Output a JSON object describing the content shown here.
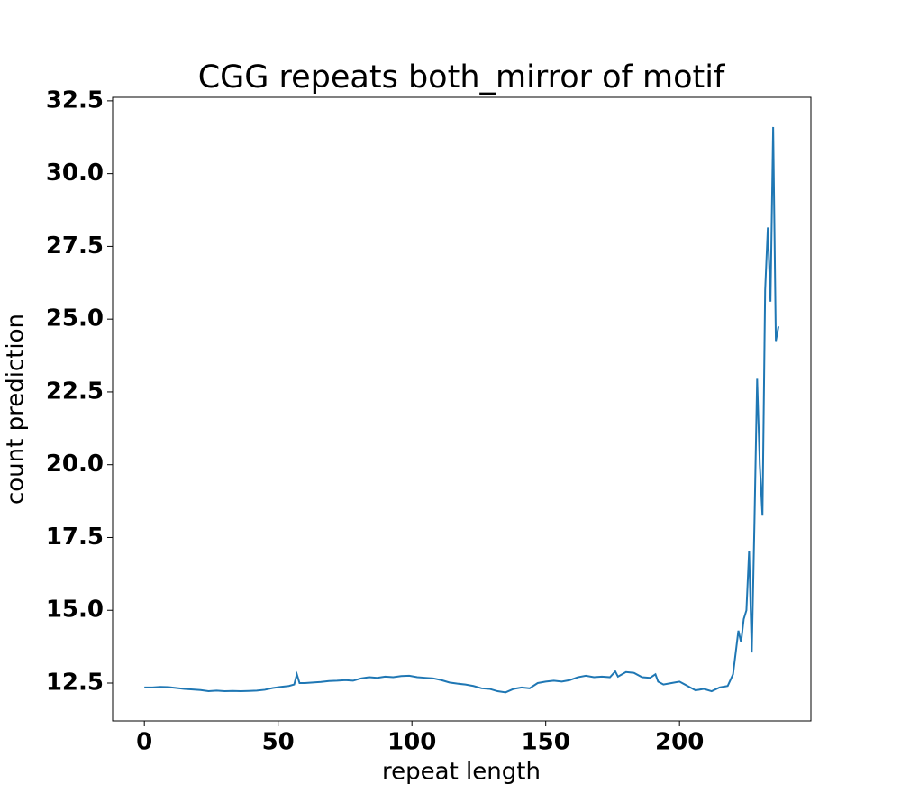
{
  "chart_data": {
    "type": "line",
    "title": "CGG repeats both_mirror of motif",
    "x_label": "repeat length",
    "y_label": "count prediction",
    "xlim": [
      -11.85,
      249.1
    ],
    "ylim": [
      11.2,
      32.62
    ],
    "xticks": [
      0,
      50,
      100,
      150,
      200
    ],
    "yticks": [
      {
        "value": 12.5,
        "label": "12.5"
      },
      {
        "value": 15,
        "label": "15.0"
      },
      {
        "value": 17.5,
        "label": "17.5"
      },
      {
        "value": 20,
        "label": "20.0"
      },
      {
        "value": 22.5,
        "label": "22.5"
      },
      {
        "value": 25,
        "label": "25.0"
      },
      {
        "value": 27.5,
        "label": "27.5"
      },
      {
        "value": 30,
        "label": "30.0"
      },
      {
        "value": 32.5,
        "label": "32.5"
      }
    ],
    "grid": false,
    "x": [
      0,
      3,
      6,
      9,
      12,
      15,
      18,
      21,
      24,
      27,
      30,
      33,
      36,
      39,
      42,
      45,
      48,
      51,
      54,
      56,
      57,
      58,
      60,
      63,
      66,
      69,
      72,
      75,
      78,
      81,
      84,
      87,
      90,
      93,
      96,
      99,
      102,
      105,
      108,
      111,
      114,
      117,
      120,
      123,
      126,
      129,
      132,
      135,
      138,
      141,
      144,
      147,
      150,
      153,
      156,
      159,
      162,
      165,
      168,
      171,
      174,
      176,
      177,
      180,
      183,
      186,
      189,
      191,
      192,
      194,
      197,
      200,
      203,
      206,
      209,
      212,
      215,
      218,
      220,
      222,
      223,
      224,
      225,
      226,
      227,
      228,
      229,
      230,
      231,
      232,
      233,
      234,
      235,
      236,
      237
    ],
    "series": [
      {
        "color": "#1f77b4",
        "values": [
          12.35,
          12.35,
          12.37,
          12.36,
          12.33,
          12.3,
          12.28,
          12.26,
          12.22,
          12.24,
          12.22,
          12.23,
          12.22,
          12.23,
          12.24,
          12.27,
          12.33,
          12.37,
          12.4,
          12.45,
          12.8,
          12.5,
          12.5,
          12.52,
          12.54,
          12.57,
          12.58,
          12.6,
          12.58,
          12.66,
          12.7,
          12.68,
          12.72,
          12.7,
          12.74,
          12.75,
          12.7,
          12.68,
          12.66,
          12.6,
          12.52,
          12.48,
          12.45,
          12.4,
          12.32,
          12.3,
          12.22,
          12.18,
          12.3,
          12.35,
          12.32,
          12.5,
          12.55,
          12.58,
          12.55,
          12.6,
          12.7,
          12.75,
          12.7,
          12.72,
          12.7,
          12.9,
          12.72,
          12.88,
          12.85,
          12.7,
          12.68,
          12.8,
          12.55,
          12.45,
          12.5,
          12.55,
          12.4,
          12.25,
          12.3,
          12.22,
          12.35,
          12.4,
          12.8,
          14.3,
          13.9,
          14.7,
          15,
          17.05,
          13.55,
          18,
          22.95,
          20,
          18.25,
          26,
          28.15,
          25.6,
          31.6,
          24.25,
          24.75
        ]
      }
    ]
  }
}
